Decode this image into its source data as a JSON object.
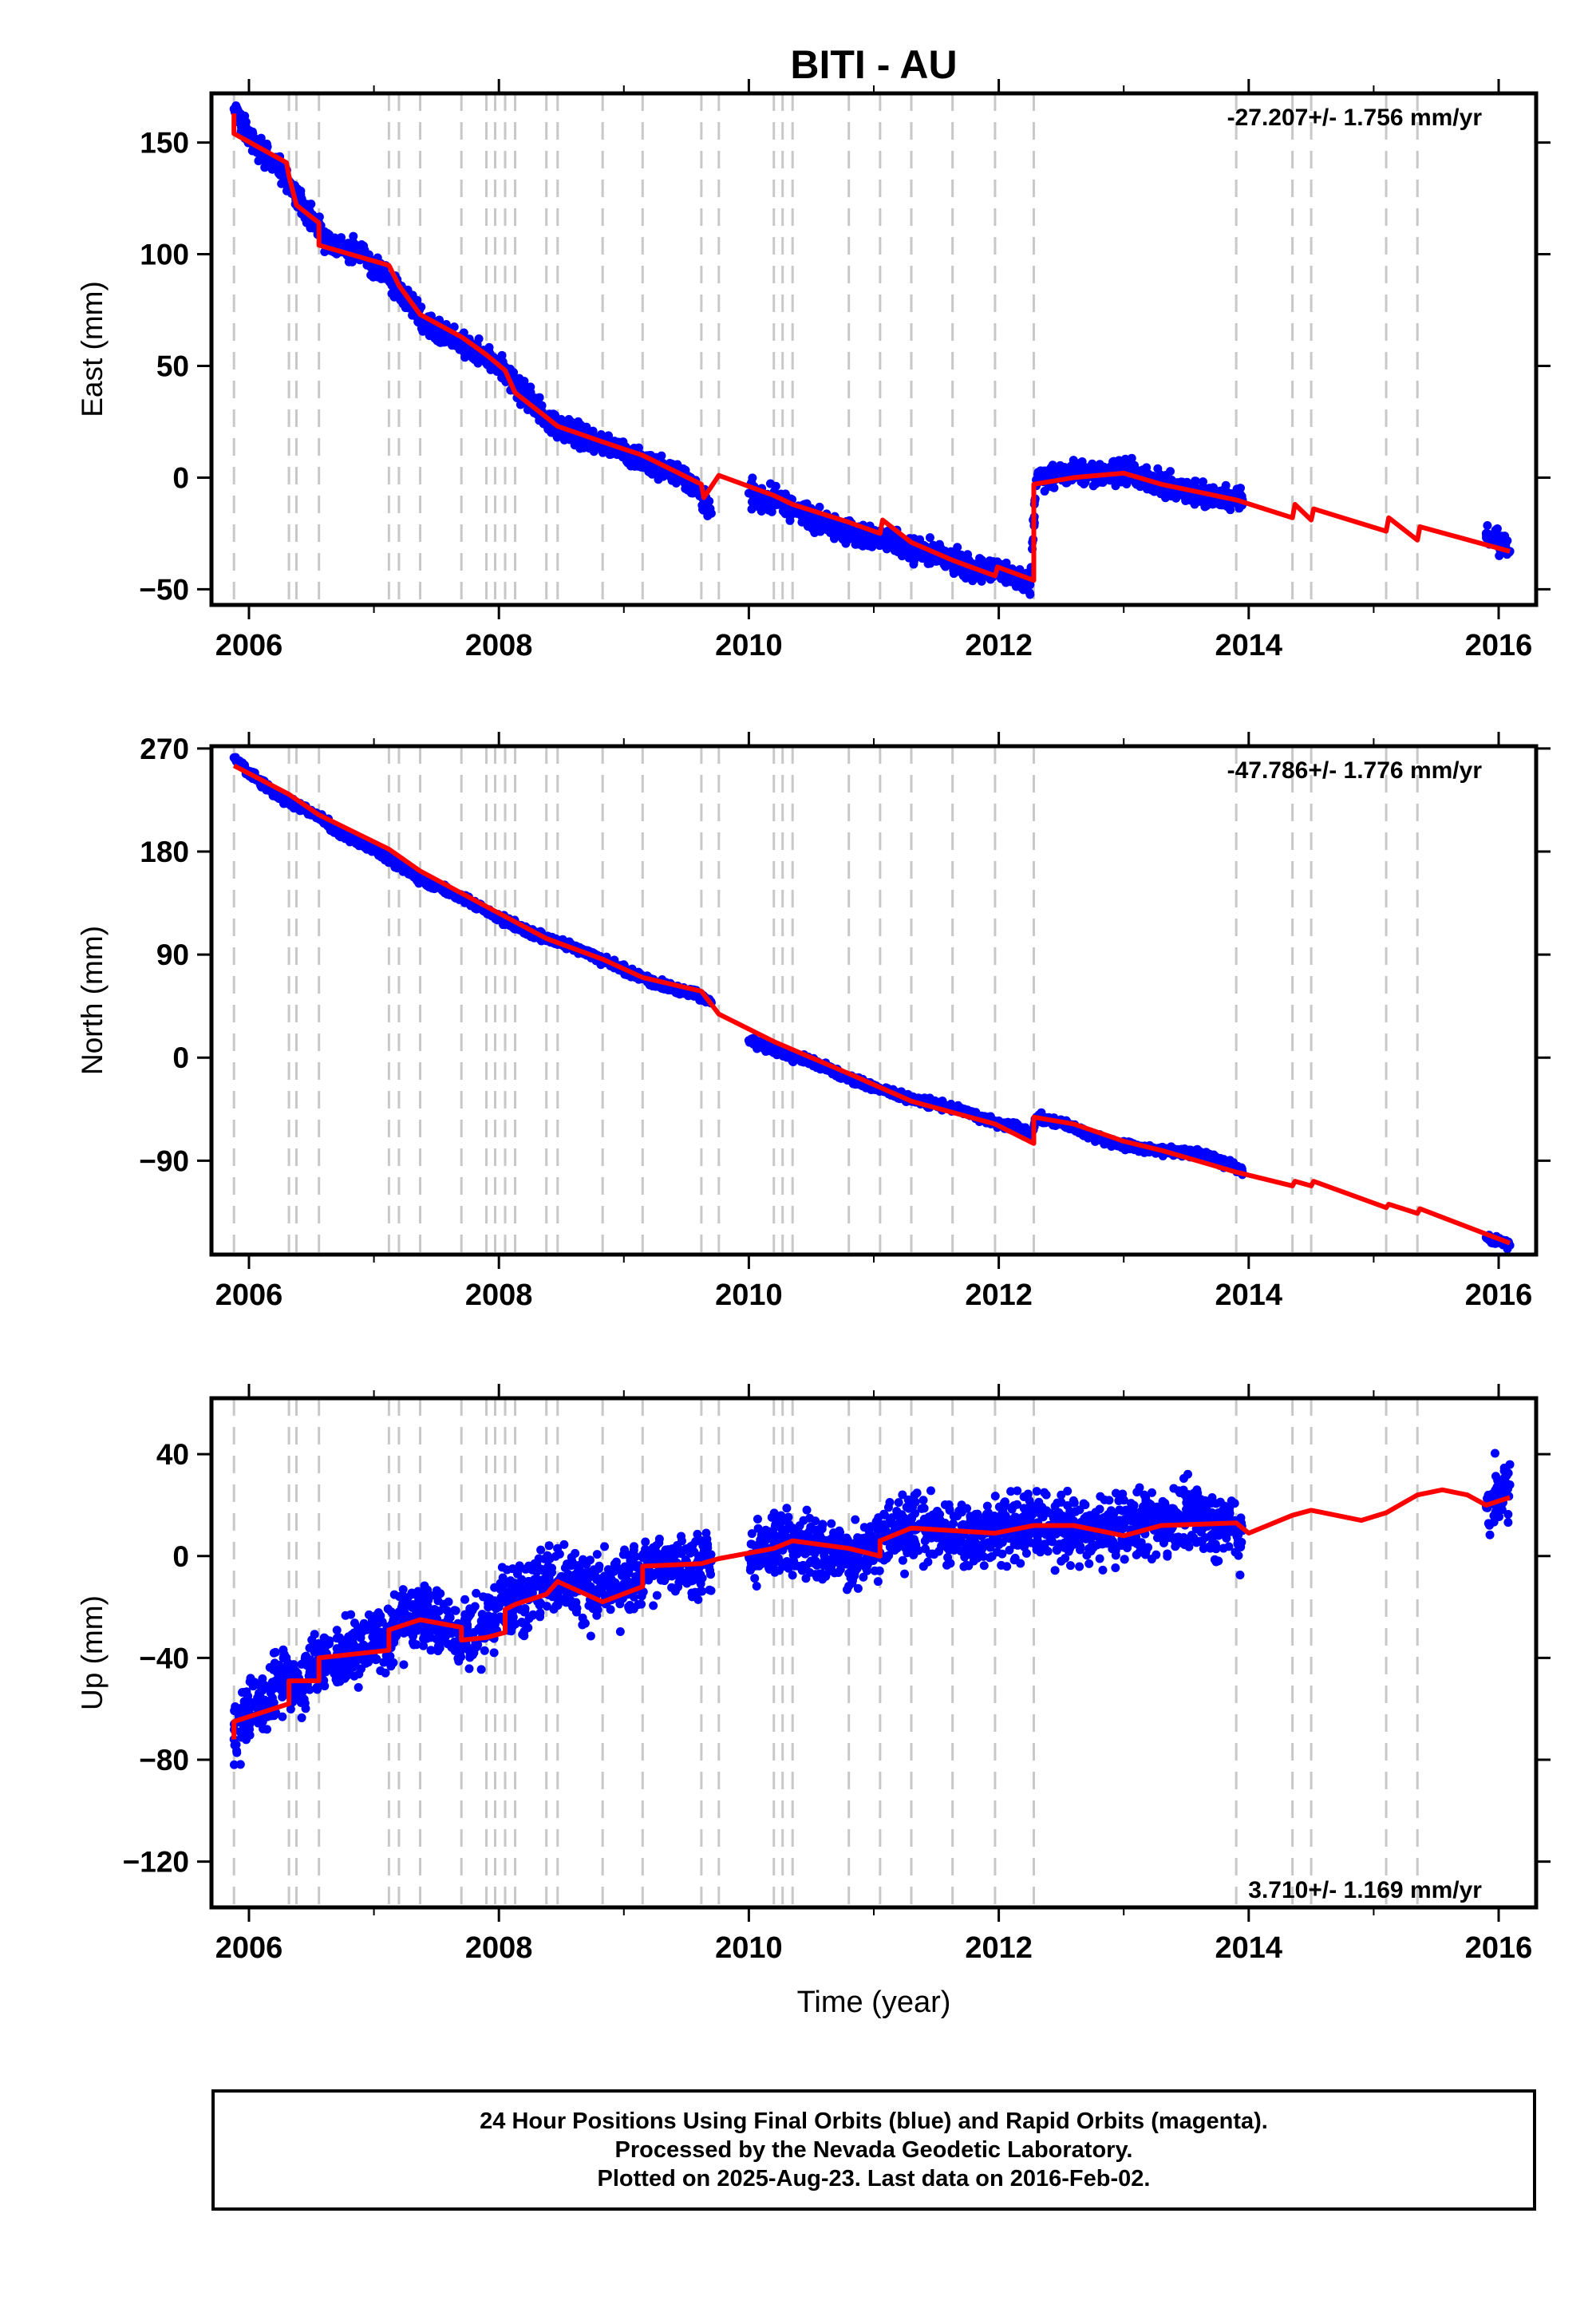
{
  "chart_data": {
    "title": "BITI - AU",
    "xlabel": "Time (year)",
    "xlim": [
      2005.7,
      2016.3
    ],
    "x_ticks": [
      2006,
      2008,
      2010,
      2012,
      2014,
      2016
    ],
    "x_tick_labels": [
      "2006",
      "2008",
      "2010",
      "2012",
      "2014",
      "2016"
    ],
    "colors": {
      "observations": "#0000ff",
      "model": "#ff0000",
      "events": "#c8c8c8"
    },
    "event_lines": [
      2005.88,
      2006.32,
      2006.38,
      2006.56,
      2007.12,
      2007.2,
      2007.37,
      2007.7,
      2007.9,
      2007.97,
      2008.05,
      2008.13,
      2008.38,
      2008.47,
      2008.83,
      2009.15,
      2009.62,
      2009.76,
      2010.2,
      2010.27,
      2010.35,
      2010.8,
      2011.05,
      2011.3,
      2011.63,
      2011.97,
      2012.28,
      2013.9,
      2014.35,
      2014.5,
      2015.1,
      2015.35
    ],
    "panels": [
      {
        "type": "scatter+line",
        "ylabel": "East (mm)",
        "ylim": [
          -57,
          172
        ],
        "y_ticks": [
          -50,
          0,
          50,
          100,
          150
        ],
        "y_tick_labels": [
          "−50",
          "0",
          "50",
          "100",
          "150"
        ],
        "rate_label": "-27.207+/- 1.756 mm/yr",
        "rate_position": "top-right",
        "series": [
          {
            "role": "observations",
            "x": [
              2005.88,
              2005.95,
              2006.0,
              2006.1,
              2006.2,
              2006.3,
              2006.4,
              2006.5,
              2006.55,
              2006.6,
              2006.7,
              2006.8,
              2006.9,
              2007.0,
              2007.1,
              2007.2,
              2007.3,
              2007.4,
              2007.5,
              2007.6,
              2007.7,
              2007.8,
              2007.9,
              2008.0,
              2008.1,
              2008.2,
              2008.3,
              2008.4,
              2008.5,
              2008.6,
              2008.7,
              2008.8,
              2008.9,
              2009.0,
              2009.1,
              2009.2,
              2009.3,
              2009.4,
              2009.5,
              2009.6,
              2009.7,
              2010.0,
              2010.1,
              2010.2,
              2010.3,
              2010.4,
              2010.5,
              2010.6,
              2010.7,
              2010.8,
              2010.9,
              2011.0,
              2011.1,
              2011.2,
              2011.3,
              2011.4,
              2011.5,
              2011.6,
              2011.7,
              2011.8,
              2011.9,
              2012.0,
              2012.1,
              2012.2,
              2012.25,
              2012.3,
              2012.4,
              2012.5,
              2012.6,
              2012.7,
              2012.8,
              2012.9,
              2013.0,
              2013.1,
              2013.2,
              2013.3,
              2013.4,
              2013.5,
              2013.6,
              2013.7,
              2013.8,
              2013.9,
              2013.95,
              2015.9,
              2015.95,
              2016.0,
              2016.05,
              2016.09
            ],
            "y": [
              165,
              158,
              152,
              146,
              141,
              134,
              124,
              117,
              113,
              107,
              104,
              102,
              100,
              96,
              90,
              84,
              77,
              70,
              65,
              62,
              60,
              57,
              54,
              51,
              43,
              37,
              32,
              25,
              22,
              20,
              18,
              16,
              14,
              12,
              9,
              6,
              4,
              2,
              0,
              -6,
              -16,
              -7,
              -9,
              -10,
              -12,
              -15,
              -18,
              -20,
              -22,
              -24,
              -26,
              -27,
              -28,
              -30,
              -32,
              -33,
              -35,
              -37,
              -39,
              -40,
              -41,
              -42,
              -44,
              -46,
              -48,
              -1,
              1,
              1,
              2,
              2,
              2,
              3,
              3,
              1,
              -1,
              -3,
              -5,
              -6,
              -7,
              -8,
              -9,
              -10,
              -10,
              -25,
              -27,
              -29,
              -31,
              -33
            ],
            "scatter_spread_mm": 3.5
          },
          {
            "role": "model",
            "x": [
              2005.88,
              2005.88,
              2006.3,
              2006.32,
              2006.38,
              2006.56,
              2006.56,
              2007.12,
              2007.2,
              2007.37,
              2007.7,
              2007.9,
              2008.05,
              2008.13,
              2008.38,
              2008.47,
              2008.83,
              2009.15,
              2009.62,
              2009.64,
              2009.76,
              2010.2,
              2010.35,
              2010.8,
              2011.05,
              2011.07,
              2011.3,
              2011.63,
              2011.97,
              2011.99,
              2012.28,
              2012.28,
              2012.6,
              2013.0,
              2013.3,
              2013.9,
              2014.35,
              2014.37,
              2014.5,
              2014.52,
              2015.1,
              2015.12,
              2015.35,
              2015.37,
              2016.09
            ],
            "y": [
              163,
              154,
              141,
              135,
              122,
              114,
              104,
              95,
              86,
              73,
              63,
              55,
              48,
              38,
              27,
              23,
              16,
              10,
              -3,
              -9,
              1,
              -8,
              -12,
              -20,
              -25,
              -19,
              -29,
              -37,
              -44,
              -40,
              -46,
              -3,
              0,
              2,
              -3,
              -10,
              -18,
              -12,
              -19,
              -14,
              -24,
              -18,
              -28,
              -22,
              -33
            ]
          }
        ]
      },
      {
        "type": "scatter+line",
        "ylabel": "North (mm)",
        "ylim": [
          -172,
          272
        ],
        "y_ticks": [
          -90,
          0,
          90,
          180,
          270
        ],
        "y_tick_labels": [
          "−90",
          "0",
          "90",
          "180",
          "270"
        ],
        "rate_label": "-47.786+/- 1.776 mm/yr",
        "rate_position": "top-right",
        "series": [
          {
            "role": "observations",
            "x": [
              2005.88,
              2005.95,
              2006.0,
              2006.1,
              2006.2,
              2006.3,
              2006.4,
              2006.5,
              2006.6,
              2006.7,
              2006.8,
              2006.9,
              2007.0,
              2007.1,
              2007.2,
              2007.3,
              2007.4,
              2007.5,
              2007.6,
              2007.7,
              2007.8,
              2007.9,
              2008.0,
              2008.1,
              2008.2,
              2008.3,
              2008.4,
              2008.5,
              2008.6,
              2008.7,
              2008.8,
              2008.9,
              2009.0,
              2009.1,
              2009.2,
              2009.3,
              2009.4,
              2009.5,
              2009.6,
              2009.7,
              2010.0,
              2010.1,
              2010.2,
              2010.3,
              2010.4,
              2010.5,
              2010.6,
              2010.7,
              2010.8,
              2010.9,
              2011.0,
              2011.1,
              2011.2,
              2011.3,
              2011.4,
              2011.5,
              2011.6,
              2011.7,
              2011.8,
              2011.9,
              2012.0,
              2012.1,
              2012.2,
              2012.25,
              2012.3,
              2012.4,
              2012.5,
              2012.6,
              2012.7,
              2012.8,
              2012.9,
              2013.0,
              2013.1,
              2013.2,
              2013.3,
              2013.4,
              2013.5,
              2013.6,
              2013.7,
              2013.8,
              2013.9,
              2013.95,
              2015.9,
              2015.95,
              2016.0,
              2016.05,
              2016.09
            ],
            "y": [
              262,
              255,
              248,
              240,
              232,
              224,
              220,
              214,
              206,
              198,
              192,
              187,
              182,
              176,
              168,
              160,
              155,
              150,
              145,
              140,
              134,
              128,
              122,
              117,
              112,
              107,
              104,
              100,
              96,
              92,
              87,
              82,
              77,
              72,
              68,
              63,
              60,
              58,
              55,
              48,
              15,
              10,
              6,
              2,
              0,
              -3,
              -8,
              -13,
              -18,
              -22,
              -26,
              -29,
              -33,
              -36,
              -38,
              -41,
              -43,
              -46,
              -50,
              -54,
              -57,
              -60,
              -64,
              -70,
              -52,
              -55,
              -57,
              -61,
              -66,
              -70,
              -74,
              -76,
              -79,
              -80,
              -81,
              -82,
              -83,
              -84,
              -87,
              -92,
              -97,
              -100,
              -157,
              -159,
              -161,
              -162,
              -164
            ],
            "scatter_spread_mm": 2.5
          },
          {
            "role": "model",
            "x": [
              2005.88,
              2006.32,
              2006.56,
              2007.12,
              2007.37,
              2007.9,
              2008.38,
              2008.83,
              2009.15,
              2009.62,
              2009.76,
              2010.2,
              2010.8,
              2011.3,
              2011.97,
              2012.28,
              2012.28,
              2012.6,
              2013.0,
              2013.3,
              2013.9,
              2014.35,
              2014.37,
              2014.5,
              2014.52,
              2015.1,
              2015.12,
              2015.35,
              2015.37,
              2016.09
            ],
            "y": [
              255,
              230,
              212,
              182,
              163,
              132,
              104,
              86,
              70,
              58,
              38,
              14,
              -14,
              -38,
              -58,
              -75,
              -52,
              -58,
              -73,
              -81,
              -100,
              -112,
              -108,
              -112,
              -108,
              -131,
              -128,
              -136,
              -132,
              -162
            ]
          }
        ]
      },
      {
        "type": "scatter+line",
        "ylabel": "Up (mm)",
        "ylim": [
          -138,
          62
        ],
        "y_ticks": [
          -120,
          -80,
          -40,
          0,
          40
        ],
        "y_tick_labels": [
          "−120",
          "−80",
          "−40",
          "0",
          "40"
        ],
        "rate_label": "3.710+/- 1.169 mm/yr",
        "rate_position": "bottom-right",
        "series": [
          {
            "role": "observations",
            "x": [
              2005.88,
              2005.95,
              2006.0,
              2006.1,
              2006.2,
              2006.3,
              2006.4,
              2006.5,
              2006.6,
              2006.7,
              2006.8,
              2006.9,
              2007.0,
              2007.1,
              2007.2,
              2007.3,
              2007.4,
              2007.5,
              2007.6,
              2007.7,
              2007.8,
              2007.9,
              2008.0,
              2008.1,
              2008.2,
              2008.3,
              2008.4,
              2008.5,
              2008.6,
              2008.7,
              2008.8,
              2008.9,
              2009.0,
              2009.1,
              2009.2,
              2009.3,
              2009.4,
              2009.5,
              2009.6,
              2009.7,
              2010.0,
              2010.1,
              2010.2,
              2010.3,
              2010.4,
              2010.5,
              2010.6,
              2010.7,
              2010.8,
              2010.9,
              2011.0,
              2011.1,
              2011.2,
              2011.3,
              2011.4,
              2011.5,
              2011.6,
              2011.7,
              2011.8,
              2011.9,
              2012.0,
              2012.1,
              2012.2,
              2012.3,
              2012.4,
              2012.5,
              2012.6,
              2012.7,
              2012.8,
              2012.9,
              2013.0,
              2013.1,
              2013.2,
              2013.3,
              2013.4,
              2013.5,
              2013.6,
              2013.7,
              2013.8,
              2013.9,
              2013.95,
              2015.9,
              2015.95,
              2016.0,
              2016.05,
              2016.09
            ],
            "y": [
              -72,
              -66,
              -60,
              -56,
              -52,
              -48,
              -48,
              -44,
              -42,
              -40,
              -38,
              -36,
              -34,
              -30,
              -28,
              -24,
              -24,
              -26,
              -28,
              -30,
              -30,
              -26,
              -20,
              -18,
              -16,
              -12,
              -8,
              -8,
              -10,
              -12,
              -14,
              -14,
              -12,
              -8,
              -6,
              -4,
              -3,
              -3,
              -3,
              -2,
              0,
              2,
              4,
              5,
              5,
              4,
              2,
              1,
              0,
              2,
              5,
              8,
              10,
              11,
              11,
              10,
              9,
              8,
              8,
              9,
              10,
              11,
              12,
              12,
              12,
              11,
              10,
              9,
              9,
              10,
              11,
              12,
              13,
              14,
              15,
              15,
              14,
              13,
              12,
              11,
              10,
              20,
              22,
              24,
              26,
              28
            ],
            "scatter_spread_mm": 9
          },
          {
            "role": "model",
            "x": [
              2005.88,
              2005.88,
              2006.32,
              2006.32,
              2006.56,
              2006.56,
              2007.12,
              2007.12,
              2007.37,
              2007.7,
              2007.7,
              2007.9,
              2008.05,
              2008.05,
              2008.13,
              2008.38,
              2008.47,
              2008.83,
              2009.15,
              2009.15,
              2009.62,
              2009.76,
              2010.2,
              2010.35,
              2010.8,
              2011.05,
              2011.05,
              2011.3,
              2011.63,
              2011.97,
              2012.28,
              2012.6,
              2013.0,
              2013.3,
              2013.9,
              2014.0,
              2014.35,
              2014.5,
              2014.7,
              2014.9,
              2015.1,
              2015.35,
              2015.55,
              2015.75,
              2015.9,
              2016.09
            ],
            "y": [
              -72,
              -65,
              -58,
              -49,
              -49,
              -40,
              -37,
              -29,
              -25,
              -28,
              -33,
              -32,
              -30,
              -21,
              -19,
              -15,
              -10,
              -18,
              -12,
              -4,
              -3,
              -1,
              3,
              6,
              3,
              0,
              6,
              11,
              10,
              9,
              12,
              12,
              8,
              12,
              13,
              9,
              16,
              18,
              16,
              14,
              17,
              24,
              26,
              24,
              20,
              23
            ]
          }
        ]
      }
    ]
  },
  "footer": {
    "line1": "24 Hour Positions Using Final Orbits (blue) and Rapid Orbits (magenta).",
    "line2": "Processed by the Nevada Geodetic Laboratory.",
    "line3": "Plotted on 2025-Aug-23. Last data on 2016-Feb-02."
  }
}
